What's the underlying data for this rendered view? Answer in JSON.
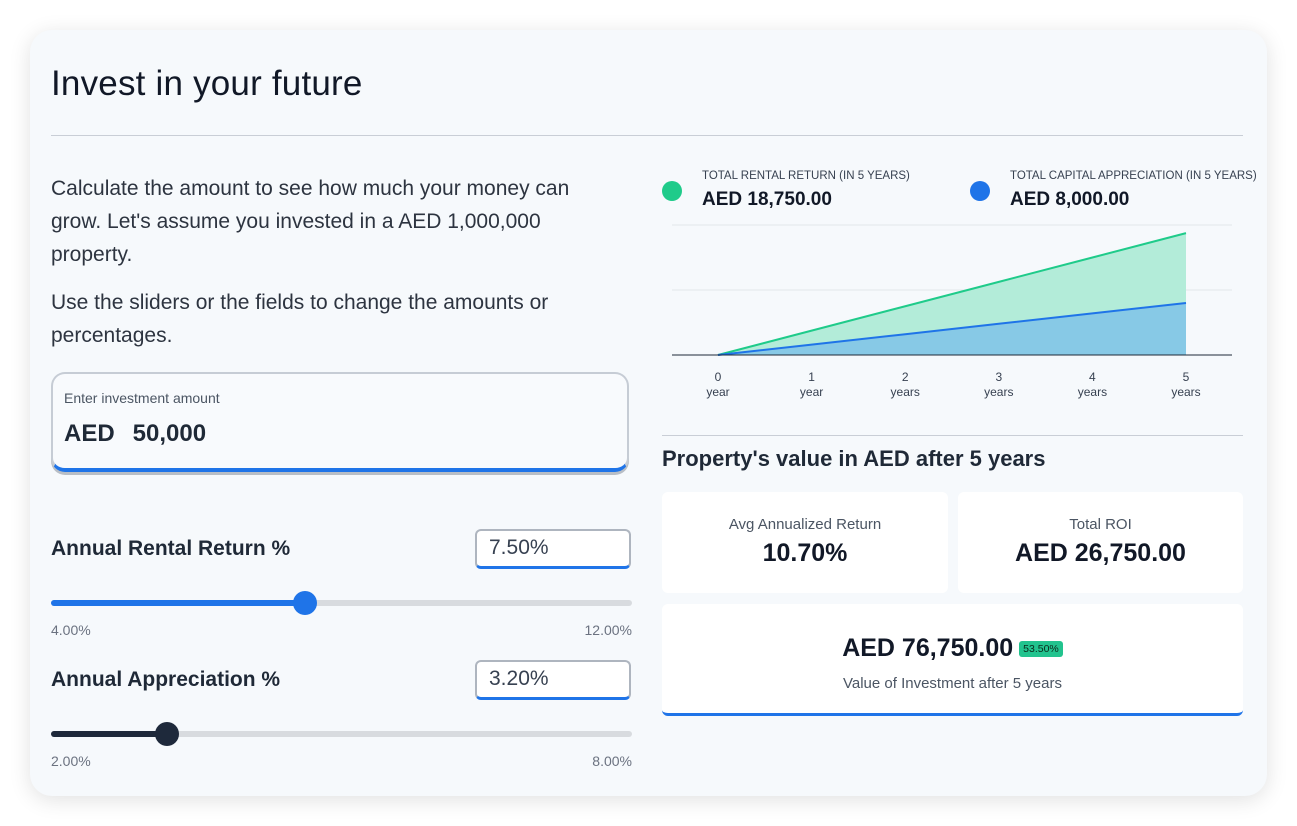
{
  "page": {
    "title": "Invest in your future",
    "intro": "Calculate the amount to see how much your money can grow. Let's assume you invested in a AED 1,000,000 property.",
    "intro2": "Use the sliders or the fields to change the amounts or percentages."
  },
  "investment": {
    "label": "Enter investment amount",
    "currency": "AED",
    "amount": "50,000"
  },
  "rental": {
    "label": "Annual Rental Return %",
    "value": "7.50%",
    "min_label": "4.00%",
    "max_label": "12.00%",
    "slider_fraction": 0.4375,
    "color": "#1f74e8"
  },
  "appreciation": {
    "label": "Annual Appreciation %",
    "value": "3.20%",
    "min_label": "2.00%",
    "max_label": "8.00%",
    "slider_fraction": 0.2,
    "color": "#1e293b"
  },
  "legend": {
    "rental": {
      "caption": "TOTAL RENTAL RETURN (IN 5 YEARS)",
      "value": "AED 18,750.00",
      "color": "#1fcb8a"
    },
    "appreciation": {
      "caption": "TOTAL CAPITAL APPRECIATION (IN 5 YEARS)",
      "value": "AED 8,000.00",
      "color": "#1f74e8"
    }
  },
  "chart_data": {
    "type": "area",
    "x": [
      0,
      1,
      2,
      3,
      4,
      5
    ],
    "x_tick_labels": [
      [
        "0",
        "year"
      ],
      [
        "1",
        "year"
      ],
      [
        "2",
        "years"
      ],
      [
        "3",
        "years"
      ],
      [
        "4",
        "years"
      ],
      [
        "5",
        "years"
      ]
    ],
    "series": [
      {
        "name": "TOTAL RENTAL RETURN (IN 5 YEARS)",
        "values": [
          0,
          3750,
          7500,
          11250,
          15000,
          18750
        ],
        "color": "#1fcb8a"
      },
      {
        "name": "TOTAL CAPITAL APPRECIATION (IN 5 YEARS)",
        "values": [
          0,
          1600,
          3200,
          4800,
          6400,
          8000
        ],
        "color": "#1f74e8"
      }
    ],
    "ylim": [
      0,
      20000
    ],
    "grid": true
  },
  "property": {
    "title": "Property's value in AED after 5 years",
    "avg_label": "Avg Annualized Return",
    "avg_value": "10.70%",
    "roi_label": "Total ROI",
    "roi_value": "AED 26,750.00",
    "final_value": "AED 76,750.00",
    "final_badge": "53.50%",
    "final_caption": "Value of Investment after 5 years"
  }
}
